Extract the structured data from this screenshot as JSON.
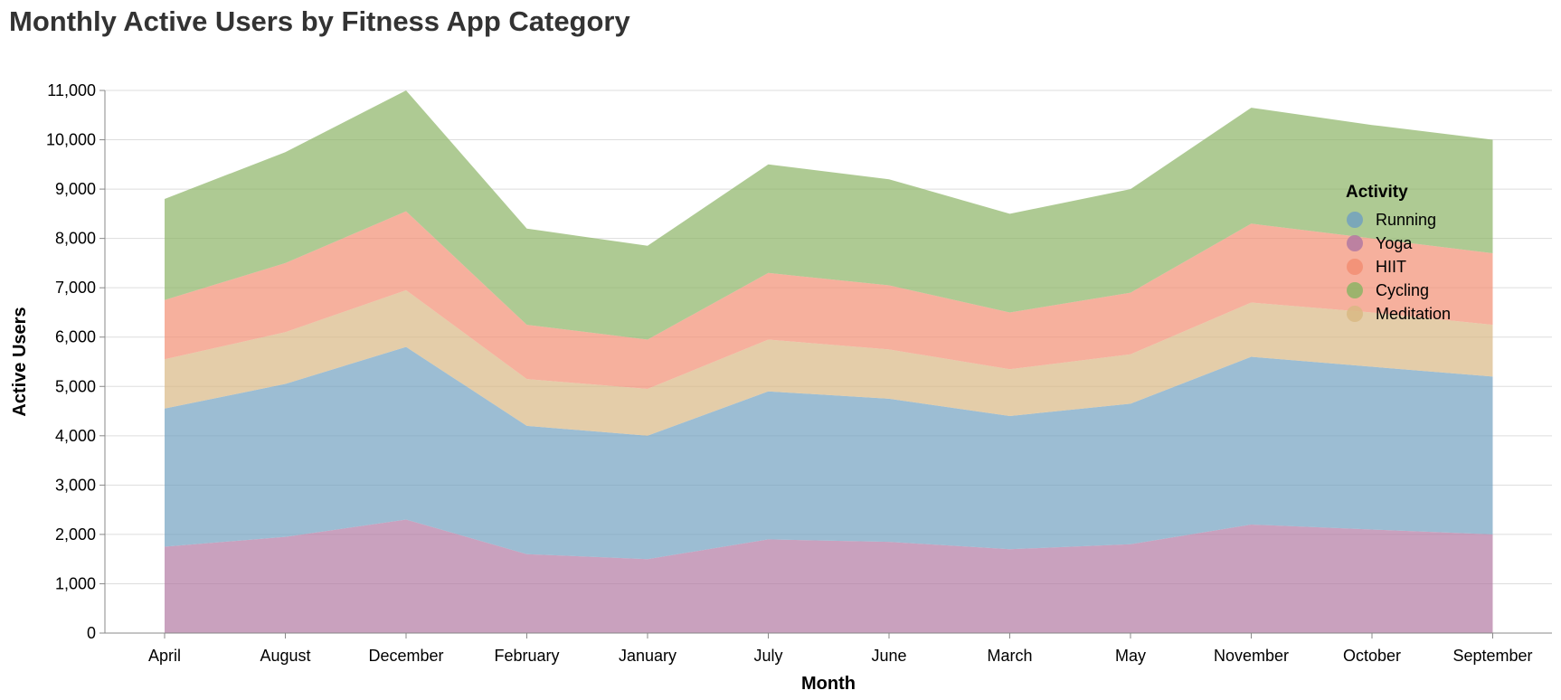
{
  "chart_data": {
    "type": "area",
    "stacked": true,
    "title": "Monthly Active Users by Fitness App Category",
    "xlabel": "Month",
    "ylabel": "Active Users",
    "ylim": [
      0,
      11000
    ],
    "yticks": [
      0,
      1000,
      2000,
      3000,
      4000,
      5000,
      6000,
      7000,
      8000,
      9000,
      10000,
      11000
    ],
    "grid": true,
    "legend_title": "Activity",
    "legend_position": "top-right",
    "categories": [
      "April",
      "August",
      "December",
      "February",
      "January",
      "July",
      "June",
      "March",
      "May",
      "November",
      "October",
      "September"
    ],
    "series": [
      {
        "name": "Yoga",
        "color": "#b279a2",
        "values": [
          1750,
          1950,
          2300,
          1600,
          1500,
          1900,
          1850,
          1700,
          1800,
          2200,
          2100,
          2000
        ]
      },
      {
        "name": "Running",
        "color": "#72a1c0",
        "values": [
          2800,
          3100,
          3500,
          2600,
          2500,
          3000,
          2900,
          2700,
          2850,
          3400,
          3300,
          3200
        ]
      },
      {
        "name": "Meditation",
        "color": "#d9b884",
        "values": [
          1000,
          1050,
          1150,
          950,
          950,
          1050,
          1000,
          950,
          1000,
          1100,
          1100,
          1050
        ]
      },
      {
        "name": "HIIT",
        "color": "#f28e73",
        "values": [
          1200,
          1400,
          1600,
          1100,
          1000,
          1350,
          1300,
          1150,
          1250,
          1600,
          1500,
          1450
        ]
      },
      {
        "name": "Cycling",
        "color": "#8cb465",
        "values": [
          2050,
          2250,
          2450,
          1950,
          1900,
          2200,
          2150,
          2000,
          2100,
          2350,
          2300,
          2300
        ]
      }
    ],
    "legend_order": [
      "Running",
      "Yoga",
      "HIIT",
      "Cycling",
      "Meditation"
    ]
  }
}
